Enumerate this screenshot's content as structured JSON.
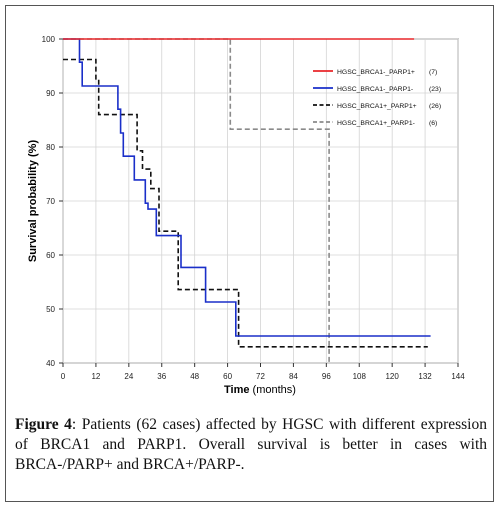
{
  "chart_data": {
    "type": "line",
    "subtype": "kaplan-meier step",
    "xlabel_bold": "Time",
    "xlabel_rest": " (months)",
    "ylabel": "Survival probability (%)",
    "xlim": [
      0,
      144
    ],
    "ylim": [
      40,
      100
    ],
    "xticks": [
      0,
      12,
      24,
      36,
      48,
      60,
      72,
      84,
      96,
      108,
      120,
      132,
      144
    ],
    "yticks": [
      40,
      50,
      60,
      70,
      80,
      90,
      100
    ],
    "grid": true,
    "legend_position": "top-right",
    "series": [
      {
        "name": "HGSC_BRCA1-_PARP1+",
        "count": "(7)",
        "color": "#e8262a",
        "style": "solid",
        "points": [
          [
            0,
            100
          ],
          [
            128,
            100
          ]
        ]
      },
      {
        "name": "HGSC_BRCA1-_PARP1-",
        "count": "(23)",
        "color": "#1a2fc9",
        "style": "solid",
        "points": [
          [
            0,
            100
          ],
          [
            6,
            100
          ],
          [
            6,
            95.7
          ],
          [
            7,
            95.7
          ],
          [
            7,
            91.3
          ],
          [
            20,
            91.3
          ],
          [
            20,
            87
          ],
          [
            21,
            87
          ],
          [
            21,
            82.6
          ],
          [
            22,
            82.6
          ],
          [
            22,
            78.3
          ],
          [
            26,
            78.3
          ],
          [
            26,
            73.9
          ],
          [
            30,
            73.9
          ],
          [
            30,
            69.6
          ],
          [
            31,
            69.6
          ],
          [
            31,
            68.5
          ],
          [
            34,
            68.5
          ],
          [
            34,
            63.6
          ],
          [
            43,
            63.6
          ],
          [
            43,
            57.7
          ],
          [
            52,
            57.7
          ],
          [
            52,
            51.3
          ],
          [
            63,
            51.3
          ],
          [
            63,
            45
          ],
          [
            134,
            45
          ]
        ]
      },
      {
        "name": "HGSC_BRCA1+_PARP1+",
        "count": "(26)",
        "color": "#111111",
        "style": "dashed",
        "points": [
          [
            0,
            96.2
          ],
          [
            12,
            96.2
          ],
          [
            12,
            92.3
          ],
          [
            13,
            92.3
          ],
          [
            13,
            86
          ],
          [
            27,
            86
          ],
          [
            27,
            79.3
          ],
          [
            29,
            79.3
          ],
          [
            29,
            75.9
          ],
          [
            32,
            75.9
          ],
          [
            32,
            72.3
          ],
          [
            35,
            72.3
          ],
          [
            35,
            64.4
          ],
          [
            42,
            64.4
          ],
          [
            42,
            53.6
          ],
          [
            64,
            53.6
          ],
          [
            64,
            43
          ],
          [
            133,
            43
          ]
        ]
      },
      {
        "name": "HGSC_BRCA1+_PARP1-",
        "count": "(6)",
        "color": "#8a8a8a",
        "style": "dashed",
        "points": [
          [
            0,
            100
          ],
          [
            61,
            100
          ],
          [
            61,
            83.3
          ],
          [
            97,
            83.3
          ],
          [
            97,
            40
          ]
        ]
      }
    ]
  },
  "caption": {
    "label": "Figure 4",
    "text": ": Patients (62 cases) affected by HGSC with different expression of BRCA1 and PARP1. Overall survival is better in cases with BRCA-/PARP+ and BRCA+/PARP-."
  }
}
